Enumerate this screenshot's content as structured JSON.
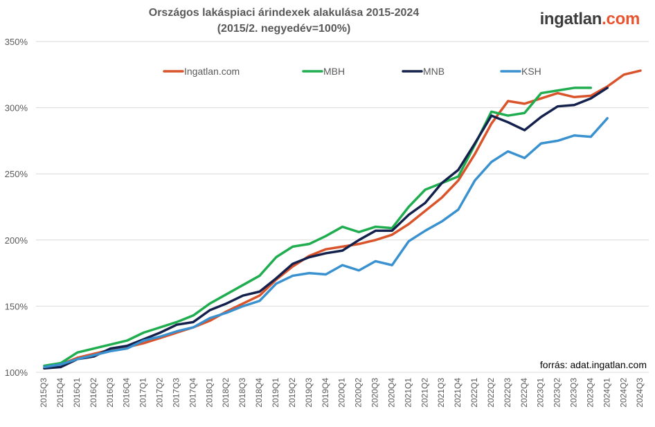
{
  "header": {
    "title": "Országos lakáspiaci árindexek alakulása 2015-2024",
    "subtitle": "(2015/2. negyedév=100%)",
    "logo_part1": "ingatlan",
    "logo_part2": ".com"
  },
  "source_note": "forrás: adat.ingatlan.com",
  "chart_data": {
    "type": "line",
    "title": "Országos lakáspiaci árindexek alakulása 2015-2024",
    "subtitle": "(2015/2. negyedév=100%)",
    "x": [
      "2015Q3",
      "2015Q4",
      "2016Q1",
      "2016Q2",
      "2016Q3",
      "2016Q4",
      "2017Q1",
      "2017Q2",
      "2017Q3",
      "2017Q4",
      "2018Q1",
      "2018Q2",
      "2018Q3",
      "2018Q4",
      "2019Q1",
      "2019Q2",
      "2019Q3",
      "2019Q4",
      "2020Q1",
      "2020Q2",
      "2020Q3",
      "2020Q4",
      "2021Q1",
      "2021Q2",
      "2021Q3",
      "2021Q4",
      "2022Q1",
      "2022Q2",
      "2022Q3",
      "2022Q4",
      "2023Q1",
      "2023Q2",
      "2023Q3",
      "2023Q4",
      "2024Q1",
      "2024Q2",
      "2024Q3"
    ],
    "ylim": [
      100,
      350
    ],
    "yticks": [
      100,
      150,
      200,
      250,
      300,
      350
    ],
    "ytick_labels": [
      "100%",
      "150%",
      "200%",
      "250%",
      "300%",
      "350%"
    ],
    "grid": "horizontal",
    "legend_position": "top",
    "series": [
      {
        "name": "Ingatlan.com",
        "color": "#d9532b",
        "values": [
          103,
          106,
          111,
          114,
          117,
          119,
          122,
          126,
          130,
          134,
          139,
          146,
          152,
          158,
          170,
          180,
          188,
          193,
          195,
          197,
          200,
          204,
          212,
          222,
          232,
          245,
          265,
          288,
          305,
          303,
          307,
          311,
          308,
          309,
          316,
          325,
          328
        ]
      },
      {
        "name": "MBH",
        "color": "#1fad4f",
        "values": [
          105,
          107,
          115,
          118,
          121,
          124,
          130,
          134,
          138,
          143,
          152,
          159,
          166,
          173,
          187,
          195,
          197,
          203,
          210,
          206,
          210,
          209,
          225,
          238,
          243,
          248,
          272,
          297,
          294,
          296,
          311,
          313,
          315,
          315,
          null,
          null,
          null
        ]
      },
      {
        "name": "MNB",
        "color": "#14214d",
        "values": [
          103,
          104,
          110,
          112,
          118,
          120,
          125,
          130,
          136,
          138,
          147,
          152,
          158,
          161,
          171,
          182,
          187,
          190,
          192,
          200,
          207,
          207,
          219,
          228,
          243,
          253,
          273,
          294,
          289,
          283,
          293,
          301,
          302,
          307,
          315,
          null,
          null
        ]
      },
      {
        "name": "KSH",
        "color": "#3a91d0",
        "values": [
          104,
          106,
          110,
          113,
          116,
          118,
          124,
          127,
          131,
          134,
          141,
          145,
          150,
          154,
          167,
          173,
          175,
          174,
          181,
          177,
          184,
          181,
          199,
          207,
          214,
          223,
          245,
          259,
          267,
          262,
          273,
          275,
          279,
          278,
          292,
          null,
          null
        ]
      }
    ]
  }
}
